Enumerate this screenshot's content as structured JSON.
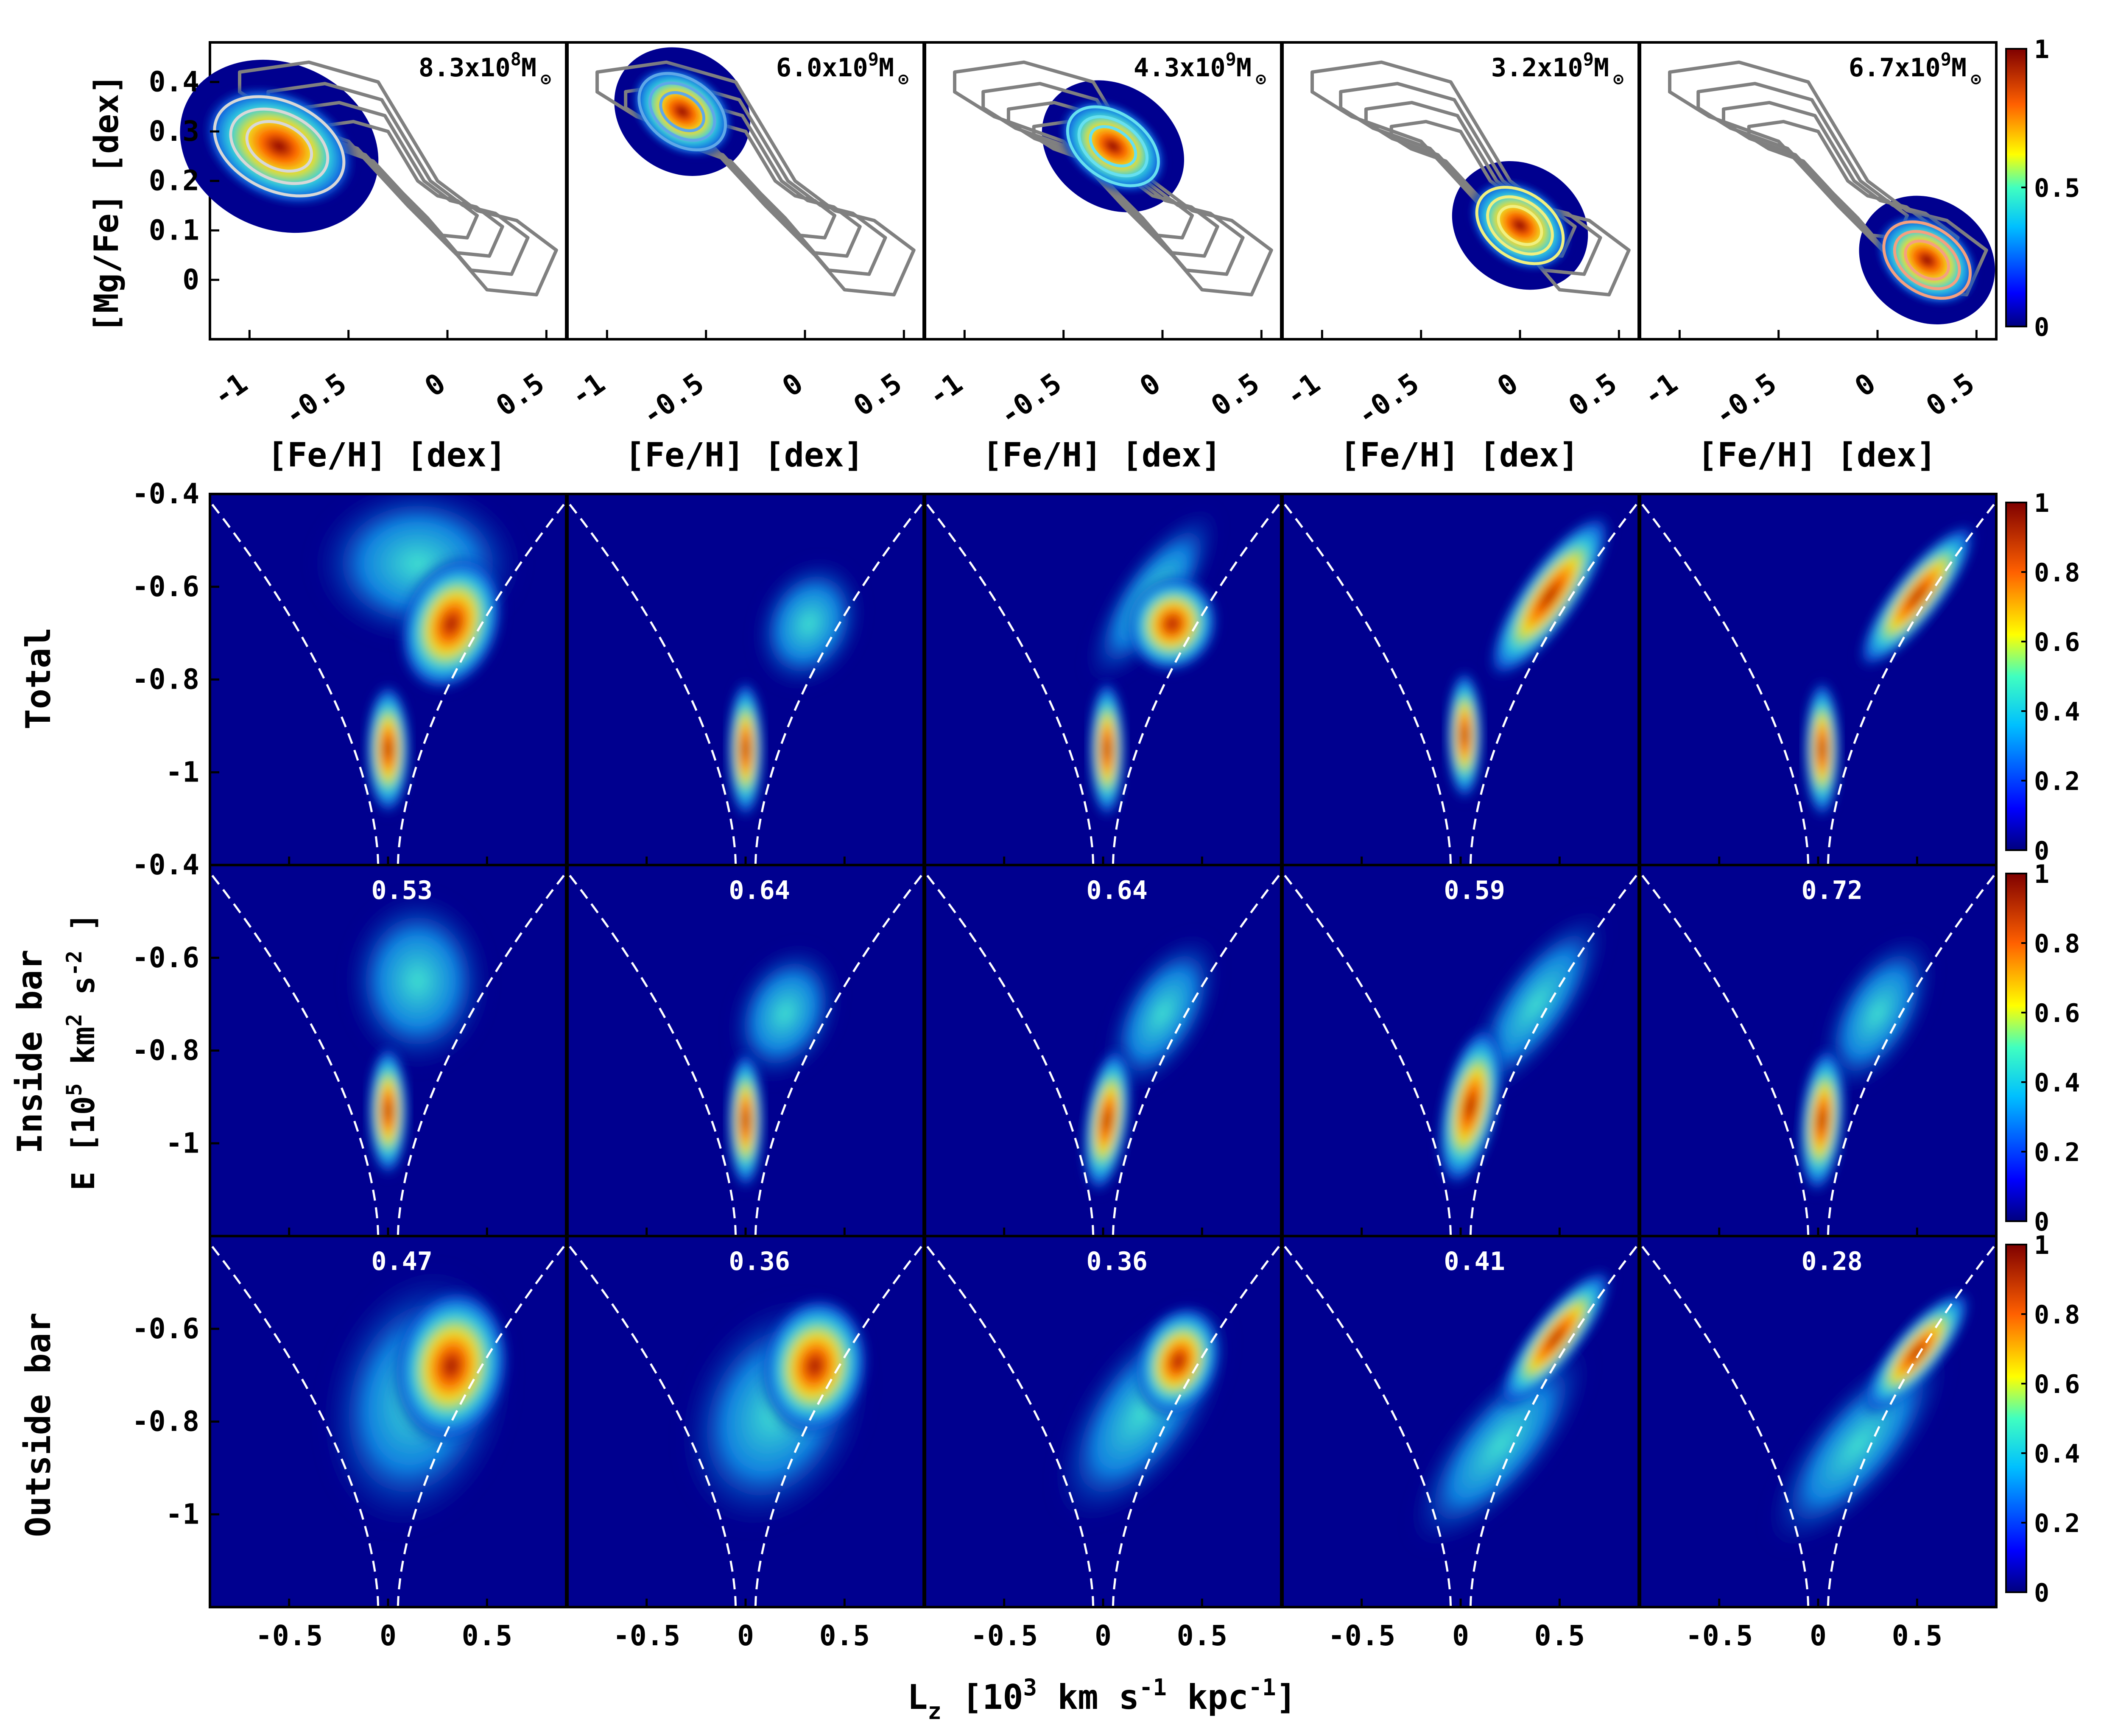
{
  "figure": {
    "top_row": {
      "ylabel": "[Mg/Fe]  [dex]",
      "xlabel": "[Fe/H]  [dex]",
      "x_ticks": [
        "-1",
        "-0.5",
        "0",
        "0.5"
      ],
      "y_ticks": [
        "0.4",
        "0.3",
        "0.2",
        "0.1",
        "0"
      ],
      "colorbar_ticks": [
        "1",
        "0.5",
        "0"
      ],
      "panels": [
        {
          "mass_label": "8.3x10",
          "mass_exp": "8",
          "unit": "M",
          "sun": "⊙"
        },
        {
          "mass_label": "6.0x10",
          "mass_exp": "9",
          "unit": "M",
          "sun": "⊙"
        },
        {
          "mass_label": "4.3x10",
          "mass_exp": "9",
          "unit": "M",
          "sun": "⊙"
        },
        {
          "mass_label": "3.2x10",
          "mass_exp": "9",
          "unit": "M",
          "sun": "⊙"
        },
        {
          "mass_label": "6.7x10",
          "mass_exp": "9",
          "unit": "M",
          "sun": "⊙"
        }
      ]
    },
    "bottom_rows": {
      "row_labels": [
        "Total",
        "Inside bar",
        "Outside bar"
      ],
      "ylabel_main": "E  [10",
      "ylabel_exp1": "5",
      "ylabel_mid": " km",
      "ylabel_exp2": "2",
      "ylabel_end": " s",
      "ylabel_exp3": "-2",
      "ylabel_close": " ]",
      "xlabel_main": "L",
      "xlabel_sub": "z",
      "xlabel_a": " [10",
      "xlabel_exp1": "3",
      "xlabel_b": " km s",
      "xlabel_exp2": "-1",
      "xlabel_c": " kpc",
      "xlabel_exp3": "-1",
      "xlabel_d": "]",
      "x_ticks": [
        "-0.5",
        "0",
        "0.5"
      ],
      "y_ticks_upper": [
        "-0.4",
        "-0.6",
        "-0.8",
        "-1"
      ],
      "y_ticks_bottom": [
        "-0.6",
        "-0.8",
        "-1"
      ],
      "colorbar_ticks": [
        "1",
        "0.8",
        "0.6",
        "0.4",
        "0.2",
        "0"
      ],
      "inside_fractions": [
        "0.53",
        "0.64",
        "0.64",
        "0.59",
        "0.72"
      ],
      "outside_fractions": [
        "0.47",
        "0.36",
        "0.36",
        "0.41",
        "0.28"
      ]
    },
    "colors": {
      "contour_gray": "#808080",
      "ellipse_colors": [
        "#d8d8d8",
        "#5fa8e8",
        "#66e0f0",
        "#f0f080",
        "#f5a080"
      ],
      "dashed_line": "#ffffff",
      "background_low": "#00008f"
    }
  },
  "chart_data": [
    {
      "type": "heatmap",
      "title": "",
      "xlabel": "[Fe/H]  [dex]",
      "ylabel": "[Mg/Fe]  [dex]",
      "xlim": [
        -1.2,
        0.6
      ],
      "ylim": [
        -0.12,
        0.48
      ],
      "colorbar": [
        0,
        1
      ],
      "peaks": [
        {
          "mass": "8.3x10^8 M⊙",
          "feh": -0.85,
          "mgfe": 0.27
        },
        {
          "mass": "6.0x10^9 M⊙",
          "feh": -0.62,
          "mgfe": 0.34
        },
        {
          "mass": "4.3x10^9 M⊙",
          "feh": -0.25,
          "mgfe": 0.27
        },
        {
          "mass": "3.2x10^9 M⊙",
          "feh": 0.0,
          "mgfe": 0.11
        },
        {
          "mass": "6.7x10^9 M⊙",
          "feh": 0.25,
          "mgfe": 0.04
        }
      ]
    },
    {
      "type": "heatmap",
      "xlabel": "L_z [10^3 km s^-1 kpc^-1]",
      "ylabel": "E [10^5 km^2 s^-2]",
      "xlim": [
        -0.9,
        0.9
      ],
      "ylim": [
        -1.2,
        -0.4
      ],
      "colorbar": [
        0,
        1
      ],
      "rows": [
        "Total",
        "Inside bar",
        "Outside bar"
      ],
      "inside_bar_fraction": [
        0.53,
        0.64,
        0.64,
        0.59,
        0.72
      ],
      "outside_bar_fraction": [
        0.47,
        0.36,
        0.36,
        0.41,
        0.28
      ]
    }
  ]
}
